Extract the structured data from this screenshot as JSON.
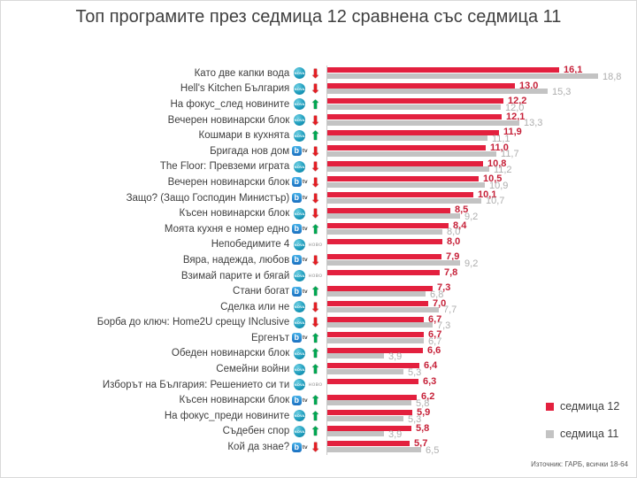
{
  "title": "Топ програмите през седмица 12 сравнена със седмица 11",
  "footer": "Източник: ГАРБ, всички 18-64",
  "legend": [
    {
      "label": "седмица 12",
      "color": "#e3203e"
    },
    {
      "label": "седмица 11",
      "color": "#c3c3c3"
    }
  ],
  "colors": {
    "week12_bar": "#e3203e",
    "week11_bar": "#c3c3c3",
    "week12_value_text": "#c62139",
    "week11_value_text": "#aeaeae",
    "up_arrow": "#00a651",
    "down_arrow": "#e31e24",
    "title_text": "#404040"
  },
  "icons": {
    "nova": "nova-tv-logo",
    "btv": "btv-logo",
    "up": "up-arrow-icon",
    "down": "down-arrow-icon",
    "new_label": "ново",
    "nova_text": "NOVA",
    "btv_b": "b",
    "btv_tv": "tv"
  },
  "chart_data": {
    "type": "bar",
    "orientation": "horizontal",
    "title": "Топ програмите през седмица 12 сравнена със седмица 11",
    "series_names": [
      "седмица 12",
      "седмица 11"
    ],
    "xlim": [
      0,
      20
    ],
    "grid": false,
    "legend_position": "right-bottom",
    "rows": [
      {
        "label": "Като две капки вода",
        "channel": "nova",
        "trend": "down",
        "week12": 16.1,
        "week11": 18.8
      },
      {
        "label": "Hell's Kitchen България",
        "channel": "nova",
        "trend": "down",
        "week12": 13.0,
        "week11": 15.3
      },
      {
        "label": "На фокус_след новините",
        "channel": "nova",
        "trend": "up",
        "week12": 12.2,
        "week11": 12.0
      },
      {
        "label": "Вечерен новинарски блок",
        "channel": "nova",
        "trend": "down",
        "week12": 12.1,
        "week11": 13.3
      },
      {
        "label": "Кошмари в кухнята",
        "channel": "nova",
        "trend": "up",
        "week12": 11.9,
        "week11": 11.1
      },
      {
        "label": "Бригада нов дом",
        "channel": "btv",
        "trend": "down",
        "week12": 11.0,
        "week11": 11.7
      },
      {
        "label": "The Floor: Превземи играта",
        "channel": "nova",
        "trend": "down",
        "week12": 10.8,
        "week11": 11.2
      },
      {
        "label": "Вечерен новинарски блок",
        "channel": "btv",
        "trend": "down",
        "week12": 10.5,
        "week11": 10.9
      },
      {
        "label": "Защо? (Защо Господин Министър)",
        "channel": "btv",
        "trend": "down",
        "week12": 10.1,
        "week11": 10.7
      },
      {
        "label": "Късен новинарски блок",
        "channel": "nova",
        "trend": "down",
        "week12": 8.5,
        "week11": 9.2
      },
      {
        "label": "Моята кухня е номер едно",
        "channel": "btv",
        "trend": "up",
        "week12": 8.4,
        "week11": 8.0
      },
      {
        "label": "Непобедимите 4",
        "channel": "nova",
        "trend": "new",
        "week12": 8.0,
        "week11": null
      },
      {
        "label": "Вяра, надежда, любов",
        "channel": "btv",
        "trend": "down",
        "week12": 7.9,
        "week11": 9.2
      },
      {
        "label": "Взимай парите и бягай",
        "channel": "nova",
        "trend": "new",
        "week12": 7.8,
        "week11": null
      },
      {
        "label": "Стани богат",
        "channel": "btv",
        "trend": "up",
        "week12": 7.3,
        "week11": 6.8
      },
      {
        "label": "Сделка или не",
        "channel": "nova",
        "trend": "down",
        "week12": 7.0,
        "week11": 7.7
      },
      {
        "label": "Борба до ключ: Home2U срещу INclusive",
        "channel": "nova",
        "trend": "down",
        "week12": 6.7,
        "week11": 7.3
      },
      {
        "label": "Ергенът",
        "channel": "btv",
        "trend": "up",
        "week12": 6.7,
        "week11": 6.7
      },
      {
        "label": "Обеден новинарски блок",
        "channel": "nova",
        "trend": "up",
        "week12": 6.6,
        "week11": 3.9
      },
      {
        "label": "Семейни войни",
        "channel": "nova",
        "trend": "up",
        "week12": 6.4,
        "week11": 5.3
      },
      {
        "label": "Изборът на България: Решението си ти",
        "channel": "nova",
        "trend": "new",
        "week12": 6.3,
        "week11": null
      },
      {
        "label": "Късен новинарски блок",
        "channel": "btv",
        "trend": "up",
        "week12": 6.2,
        "week11": 5.8
      },
      {
        "label": "На фокус_преди новините",
        "channel": "nova",
        "trend": "up",
        "week12": 5.9,
        "week11": 5.3
      },
      {
        "label": "Съдебен спор",
        "channel": "nova",
        "trend": "up",
        "week12": 5.8,
        "week11": 3.9
      },
      {
        "label": "Кой да знае?",
        "channel": "btv",
        "trend": "down",
        "week12": 5.7,
        "week11": 6.5
      }
    ]
  }
}
